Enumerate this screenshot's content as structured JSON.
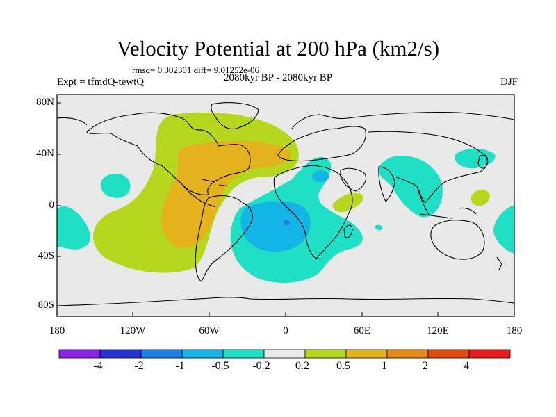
{
  "title": "Velocity Potential at 200 hPa (km2/s)",
  "stats": "rmsd= 0.302301 diff= 9.01252e-06",
  "experiment": "Expt = tfmdQ-tewtQ",
  "period": "2080kyr BP - 2080kyr BP",
  "season": "DJF",
  "latitude_labels": [
    "80N",
    "40N",
    "0",
    "40S",
    "80S"
  ],
  "longitude_labels": [
    "180",
    "120W",
    "60W",
    "0",
    "60E",
    "120E",
    "180"
  ],
  "colorbar": {
    "labels": [
      "-4",
      "-2",
      "-1",
      "-0.5",
      "-0.2",
      "0.2",
      "0.5",
      "1",
      "2",
      "4"
    ],
    "colors": [
      "#8b22e6",
      "#2430d2",
      "#1f7fe6",
      "#12b5e6",
      "#1fe0c4",
      "#e9e9e9",
      "#b5d81e",
      "#e3b21c",
      "#e48a18",
      "#e14a12",
      "#e81a1a"
    ]
  },
  "colors": {
    "background": "#e9e9e9",
    "pos_0_2": "#b5d81e",
    "pos_0_5": "#e3b21c",
    "neg_0_2": "#1fe0c4",
    "neg_0_5": "#12b5e6",
    "neg_1": "#1f7fe6"
  }
}
